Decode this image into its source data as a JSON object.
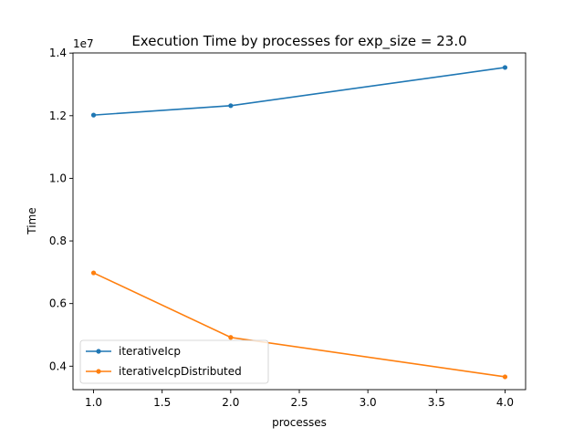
{
  "chart_data": {
    "type": "line",
    "title": "Execution Time by processes for exp_size = 23.0",
    "xlabel": "processes",
    "ylabel": "Time",
    "y_offset_label": "1e7",
    "x": [
      1.0,
      2.0,
      4.0
    ],
    "xlim": [
      0.85,
      4.15
    ],
    "ylim": [
      0.3251,
      1.4005
    ],
    "x_ticks": [
      1.0,
      1.5,
      2.0,
      2.5,
      3.0,
      3.5,
      4.0
    ],
    "x_tick_labels": [
      "1.0",
      "1.5",
      "2.0",
      "2.5",
      "3.0",
      "3.5",
      "4.0"
    ],
    "y_ticks": [
      0.4,
      0.6,
      0.8,
      1.0,
      1.2,
      1.4
    ],
    "y_tick_labels": [
      "0.4",
      "0.6",
      "0.8",
      "1.0",
      "1.2",
      "1.4"
    ],
    "grid": false,
    "legend_position": "lower-left",
    "series": [
      {
        "name": "iterativeIcp",
        "color": "#1f77b4",
        "values": [
          1.202,
          1.232,
          1.354
        ]
      },
      {
        "name": "iterativeIcpDistributed",
        "color": "#ff7f0e",
        "values": [
          0.698,
          0.492,
          0.366
        ]
      }
    ]
  }
}
